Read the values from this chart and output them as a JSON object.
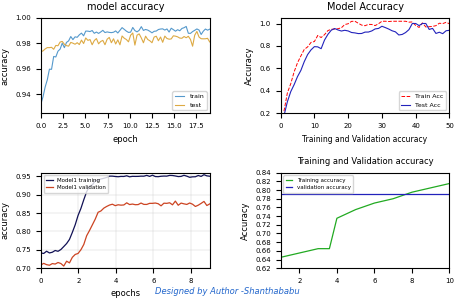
{
  "title_top_left": "model accuracy",
  "xlabel_top_left": "epoch",
  "ylabel_top_left": "accuracy",
  "title_top_right": "Model Accuracy",
  "xlabel_top_right": "Training and Validation accuracy",
  "ylabel_top_right": "Accuracy",
  "xlabel_bottom_left": "epochs",
  "ylabel_bottom_left": "accuracy",
  "title_bottom_right": "Training and Validation accuracy",
  "ylabel_bottom_right": "Accuracy",
  "footer_text": "Designed by Author -Shanthababu"
}
